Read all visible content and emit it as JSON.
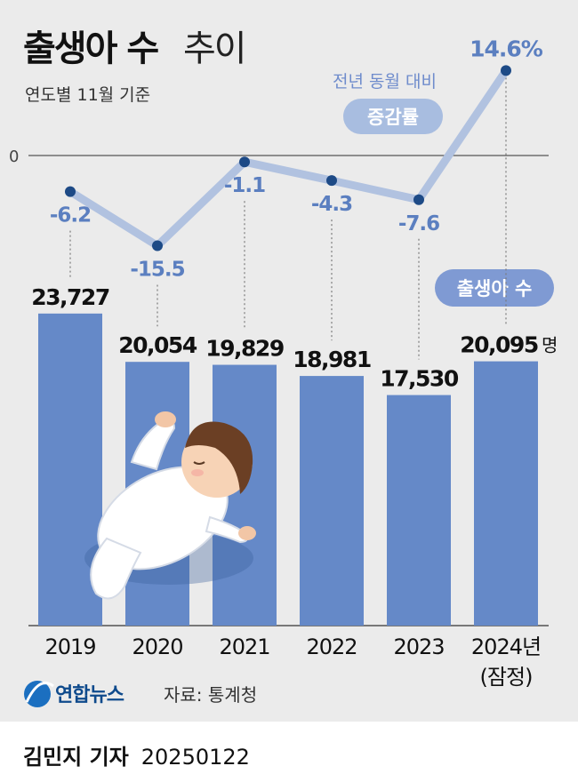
{
  "header": {
    "title_main": "출생아 수",
    "title_sub": "추이",
    "subtitle": "연도별 11월 기준"
  },
  "legend": {
    "rate_caption": "전년 동월 대비",
    "rate_pill": "증감률",
    "births_pill": "출생아 수"
  },
  "chart_data": {
    "type": "bar",
    "categories": [
      "2019",
      "2020",
      "2021",
      "2022",
      "2023",
      "2024년"
    ],
    "category_note": "(잠정)",
    "series": [
      {
        "name": "출생아 수",
        "type": "bar",
        "values": [
          23727,
          20054,
          19829,
          18981,
          17530,
          20095
        ],
        "labels": [
          "23,727",
          "20,054",
          "19,829",
          "18,981",
          "17,530",
          "20,095"
        ],
        "unit": "명",
        "color": "#6589c8"
      },
      {
        "name": "증감률",
        "type": "line",
        "values": [
          -6.2,
          -15.5,
          -1.1,
          -4.3,
          -7.6,
          14.6
        ],
        "labels": [
          "-6.2",
          "-15.5",
          "-1.1",
          "-4.3",
          "-7.6",
          "14.6%"
        ],
        "color": "#b1c2e0",
        "marker_color": "#1d4a86"
      }
    ],
    "zero_label": "0"
  },
  "colors": {
    "background": "#ebebeb",
    "bar": "#6589c8",
    "line": "#b1c2e0",
    "marker": "#1d4a86",
    "pct_text": "#5b7fc0",
    "pill": "#7f9ad3"
  },
  "illustration": {
    "icon": "baby-illustration-icon"
  },
  "footer": {
    "brand": "연합뉴스",
    "brand_icon": "yonhap-logo-icon",
    "source": "자료: 통계청",
    "author": "김민지 기자",
    "date": "20250122"
  }
}
